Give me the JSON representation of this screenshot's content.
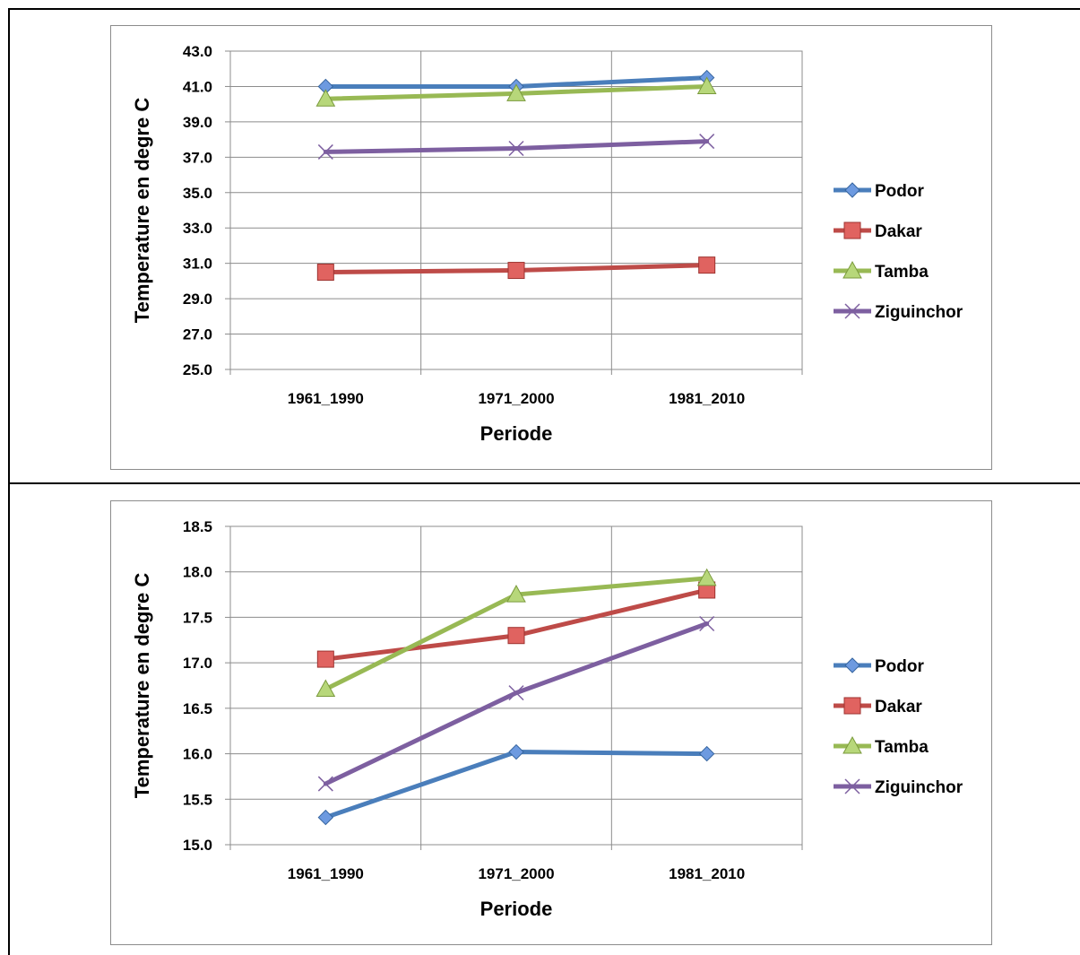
{
  "chart_data": [
    {
      "type": "line",
      "categories": [
        "1961_1990",
        "1971_2000",
        "1981_2010"
      ],
      "xlabel": "Periode",
      "ylabel": "Temperature en degre C",
      "ylim": [
        25.0,
        43.0
      ],
      "ytick_step": 2.0,
      "yticks": [
        "25.0",
        "27.0",
        "29.0",
        "31.0",
        "33.0",
        "35.0",
        "37.0",
        "39.0",
        "41.0",
        "43.0"
      ],
      "grid": true,
      "legend_position": "right",
      "series": [
        {
          "name": "Podor",
          "values": [
            41.0,
            41.0,
            41.5
          ],
          "color": "#4a7ebb",
          "marker": "diamond"
        },
        {
          "name": "Dakar",
          "values": [
            30.5,
            30.6,
            30.9
          ],
          "color": "#be4b48",
          "marker": "square"
        },
        {
          "name": "Tamba",
          "values": [
            40.3,
            40.6,
            41.0
          ],
          "color": "#98b954",
          "marker": "triangle"
        },
        {
          "name": "Ziguinchor",
          "values": [
            37.3,
            37.5,
            37.9
          ],
          "color": "#7d5fa0",
          "marker": "x"
        }
      ]
    },
    {
      "type": "line",
      "categories": [
        "1961_1990",
        "1971_2000",
        "1981_2010"
      ],
      "xlabel": "Periode",
      "ylabel": "Temperature en degre C",
      "ylim": [
        15.0,
        18.5
      ],
      "ytick_step": 0.5,
      "yticks": [
        "15.0",
        "15.5",
        "16.0",
        "16.5",
        "17.0",
        "17.5",
        "18.0",
        "18.5"
      ],
      "grid": true,
      "legend_position": "right",
      "series": [
        {
          "name": "Podor",
          "values": [
            15.3,
            16.02,
            16.0
          ],
          "color": "#4a7ebb",
          "marker": "diamond"
        },
        {
          "name": "Dakar",
          "values": [
            17.04,
            17.3,
            17.8
          ],
          "color": "#be4b48",
          "marker": "square"
        },
        {
          "name": "Tamba",
          "values": [
            16.71,
            17.75,
            17.93
          ],
          "color": "#98b954",
          "marker": "triangle"
        },
        {
          "name": "Ziguinchor",
          "values": [
            15.67,
            16.67,
            17.43
          ],
          "color": "#7d5fa0",
          "marker": "x"
        }
      ]
    }
  ]
}
